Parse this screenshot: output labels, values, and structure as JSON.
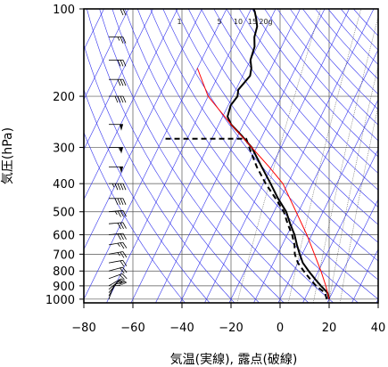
{
  "chart_data": {
    "type": "line",
    "title": "",
    "xlabel": "気温(実線), 露点(破線)",
    "ylabel": "気圧(hPa)",
    "xlim": [
      -80,
      40
    ],
    "ylim": [
      1030,
      100
    ],
    "y_scale": "log",
    "x_ticks": [
      -80,
      -60,
      -40,
      -20,
      0,
      20,
      40
    ],
    "y_ticks": [
      100,
      200,
      300,
      400,
      500,
      600,
      700,
      800,
      900,
      1000
    ],
    "mixing_ratio_labels": [
      "1",
      "5",
      "10",
      "15",
      "20g"
    ],
    "tropopause_pressure": 280,
    "grid": true,
    "series": [
      {
        "role": "temperature",
        "style": "solid",
        "color": "#000000",
        "points": [
          [
            20,
            1000
          ],
          [
            18,
            950
          ],
          [
            14,
            900
          ],
          [
            10,
            850
          ],
          [
            6,
            800
          ],
          [
            2,
            750
          ],
          [
            -1,
            700
          ],
          [
            -4,
            650
          ],
          [
            -7,
            600
          ],
          [
            -11,
            550
          ],
          [
            -15,
            500
          ],
          [
            -21,
            450
          ],
          [
            -27,
            400
          ],
          [
            -34,
            350
          ],
          [
            -42,
            300
          ],
          [
            -48,
            275
          ],
          [
            -55,
            250
          ],
          [
            -58,
            235
          ],
          [
            -59,
            215
          ],
          [
            -58,
            200
          ],
          [
            -59,
            190
          ],
          [
            -57,
            170
          ],
          [
            -58,
            160
          ],
          [
            -60,
            150
          ],
          [
            -61,
            135
          ],
          [
            -63,
            125
          ],
          [
            -64,
            115
          ],
          [
            -66,
            108
          ],
          [
            -68,
            102
          ],
          [
            -69,
            100
          ]
        ]
      },
      {
        "role": "dewpoint",
        "style": "dashed",
        "color": "#000000",
        "points": [
          [
            19,
            1000
          ],
          [
            17,
            950
          ],
          [
            12,
            900
          ],
          [
            8,
            850
          ],
          [
            4,
            800
          ],
          [
            0,
            750
          ],
          [
            -3,
            700
          ],
          [
            -5,
            650
          ],
          [
            -8,
            600
          ],
          [
            -12,
            550
          ],
          [
            -16,
            500
          ],
          [
            -22,
            450
          ],
          [
            -29,
            400
          ],
          [
            -36,
            350
          ],
          [
            -43,
            300
          ],
          [
            -46,
            280
          ],
          [
            -80,
            280
          ]
        ]
      },
      {
        "role": "parcel",
        "style": "solid",
        "color": "#ff0000",
        "points": [
          [
            20,
            1000
          ],
          [
            16,
            900
          ],
          [
            11,
            800
          ],
          [
            5,
            700
          ],
          [
            -2,
            600
          ],
          [
            -11,
            500
          ],
          [
            -22,
            400
          ],
          [
            -31,
            350
          ],
          [
            -42,
            300
          ],
          [
            -55,
            250
          ],
          [
            -70,
            200
          ],
          [
            -80,
            160
          ]
        ]
      }
    ],
    "wind_barbs": [
      {
        "p": 1000,
        "dir": 200,
        "spd": 10
      },
      {
        "p": 975,
        "dir": 210,
        "spd": 10
      },
      {
        "p": 950,
        "dir": 220,
        "spd": 10
      },
      {
        "p": 925,
        "dir": 230,
        "spd": 15
      },
      {
        "p": 900,
        "dir": 240,
        "spd": 15
      },
      {
        "p": 850,
        "dir": 250,
        "spd": 20
      },
      {
        "p": 800,
        "dir": 255,
        "spd": 20
      },
      {
        "p": 750,
        "dir": 260,
        "spd": 20
      },
      {
        "p": 700,
        "dir": 260,
        "spd": 25
      },
      {
        "p": 650,
        "dir": 260,
        "spd": 25
      },
      {
        "p": 600,
        "dir": 265,
        "spd": 30
      },
      {
        "p": 550,
        "dir": 265,
        "spd": 30
      },
      {
        "p": 500,
        "dir": 265,
        "spd": 35
      },
      {
        "p": 450,
        "dir": 270,
        "spd": 40
      },
      {
        "p": 400,
        "dir": 270,
        "spd": 45
      },
      {
        "p": 350,
        "dir": 270,
        "spd": 50
      },
      {
        "p": 300,
        "dir": 270,
        "spd": 55
      },
      {
        "p": 250,
        "dir": 270,
        "spd": 50
      },
      {
        "p": 200,
        "dir": 270,
        "spd": 40
      },
      {
        "p": 175,
        "dir": 270,
        "spd": 30
      },
      {
        "p": 150,
        "dir": 270,
        "spd": 30
      },
      {
        "p": 125,
        "dir": 270,
        "spd": 25
      },
      {
        "p": 100,
        "dir": 270,
        "spd": 20
      }
    ]
  }
}
